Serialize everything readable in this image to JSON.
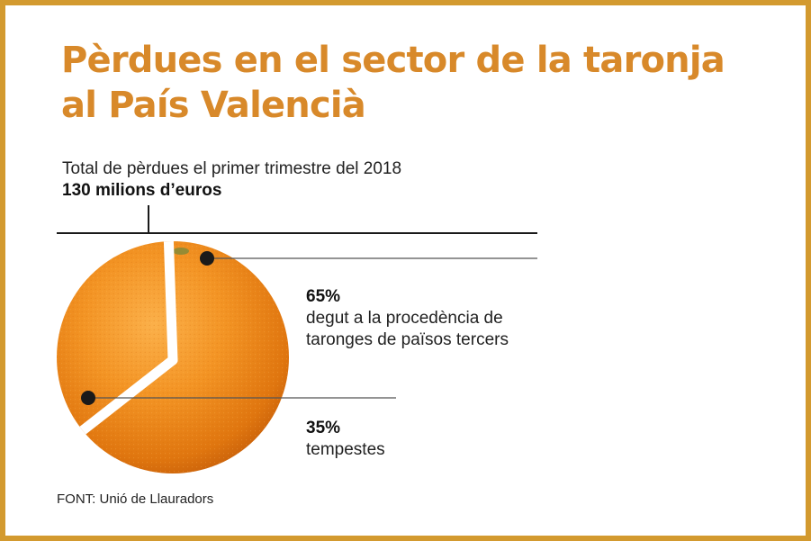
{
  "title": "Pèrdues en el sector de la taronja al País Valencià",
  "subtitle": "Total de pèrdues el primer trimestre del 2018",
  "total": "130 milions d’euros",
  "source": "FONT: Unió de Llauradors",
  "colors": {
    "frame": "#d39a2f",
    "title": "#d8892a",
    "orange": "#f08a1c"
  },
  "chart_data": {
    "type": "pie",
    "style": "orange-fruit pie with one slice separated by a white gap",
    "categories": [
      "degut a la procedència de taronges de països tercers",
      "tempestes"
    ],
    "values": [
      65,
      35
    ],
    "unit": "%",
    "labels": [
      {
        "pct": "65%",
        "line1": "degut a la procedència de",
        "line2": "taronges de països tercers"
      },
      {
        "pct": "35%",
        "line1": "tempestes"
      }
    ]
  }
}
